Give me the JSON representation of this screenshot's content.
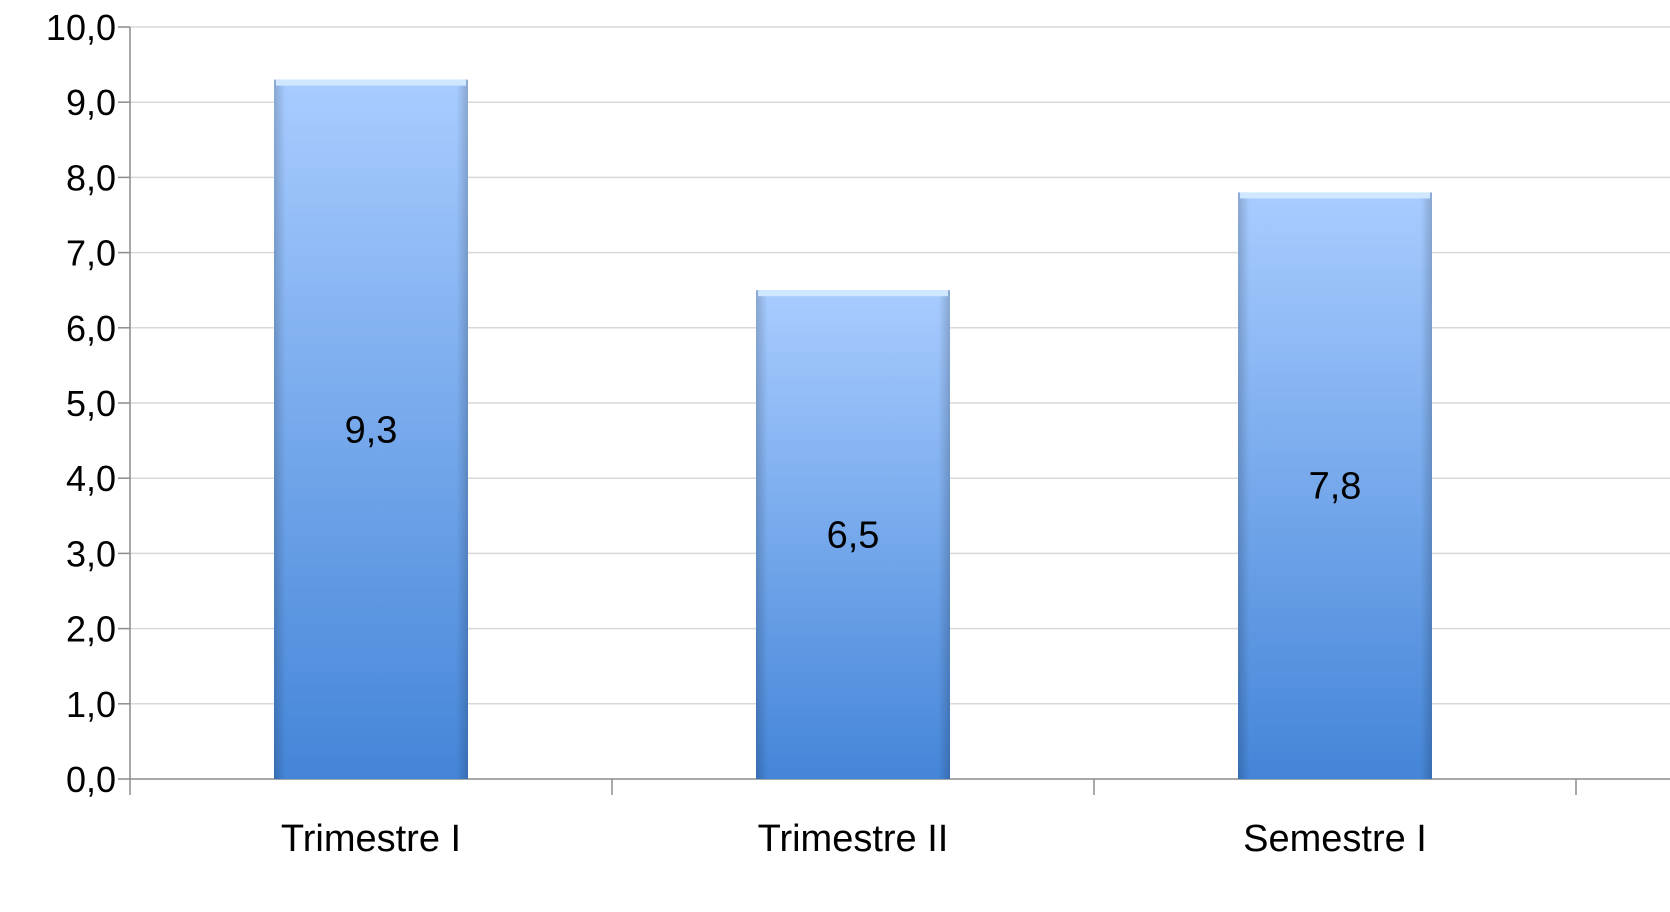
{
  "chart_data": {
    "type": "bar",
    "categories": [
      "Trimestre I",
      "Trimestre II",
      "Semestre I"
    ],
    "values": [
      9.3,
      6.5,
      7.8
    ],
    "value_labels": [
      "9,3",
      "6,5",
      "7,8"
    ],
    "ylim": [
      0,
      10
    ],
    "ytick_values": [
      0,
      1,
      2,
      3,
      4,
      5,
      6,
      7,
      8,
      9,
      10
    ],
    "ytick_labels": [
      "0,0",
      "1,0",
      "2,0",
      "3,0",
      "4,0",
      "5,0",
      "6,0",
      "7,0",
      "8,0",
      "9,0",
      "10,0"
    ],
    "grid": true,
    "legend": "none",
    "title": "",
    "xlabel": "",
    "ylabel": "",
    "colors": {
      "bar_top": "#a8ccff",
      "bar_bottom": "#4485d8",
      "bar_cap": "#cfe8ff",
      "gridline": "#d9d9d9",
      "axis": "#8c8c8c"
    }
  }
}
